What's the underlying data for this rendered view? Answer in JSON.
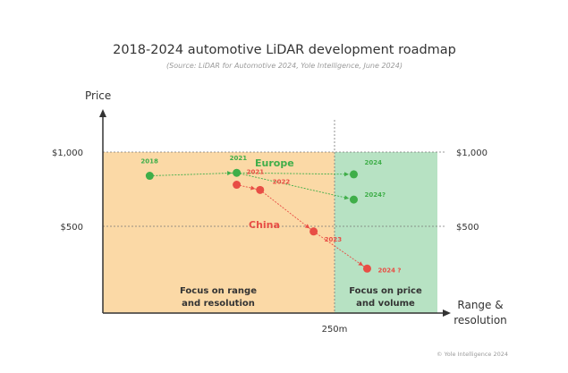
{
  "chart_data": {
    "type": "scatter",
    "title": "2018-2024 automotive LiDAR development roadmap",
    "subtitle": "(Source: LiDAR for Automotive 2024, Yole Intelligence, June 2024)",
    "ylabel": "Price",
    "xlabel_line1": "Range &",
    "xlabel_line2": "resolution",
    "x_tick_label": "250m",
    "y_ticks": [
      {
        "value": 1000,
        "label": "$1,000"
      },
      {
        "value": 500,
        "label": "$500"
      }
    ],
    "ylim": [
      0,
      1100
    ],
    "regions": [
      {
        "name": "range",
        "label_line1": "Focus on range",
        "label_line2": "and resolution",
        "color": "#fbd9a6"
      },
      {
        "name": "price",
        "label_line1": "Focus on price",
        "label_line2": "and volume",
        "color": "#b7e2c3"
      }
    ],
    "series": [
      {
        "name": "Europe",
        "color": "#3fae49",
        "points": [
          {
            "label": "2018",
            "x": 0.14,
            "y": 840
          },
          {
            "label": "2021",
            "x": 0.4,
            "y": 860
          },
          {
            "label": "2024",
            "x": 0.75,
            "y": 850
          },
          {
            "label": "2024?",
            "x": 0.75,
            "y": 680
          }
        ]
      },
      {
        "name": "China",
        "color": "#e84e45",
        "points": [
          {
            "label": "2021",
            "x": 0.4,
            "y": 780
          },
          {
            "label": "2022",
            "x": 0.47,
            "y": 745
          },
          {
            "label": "2023",
            "x": 0.63,
            "y": 465
          },
          {
            "label": "2024 ?",
            "x": 0.79,
            "y": 215
          }
        ]
      }
    ],
    "footer": "© Yole Intelligence 2024"
  }
}
